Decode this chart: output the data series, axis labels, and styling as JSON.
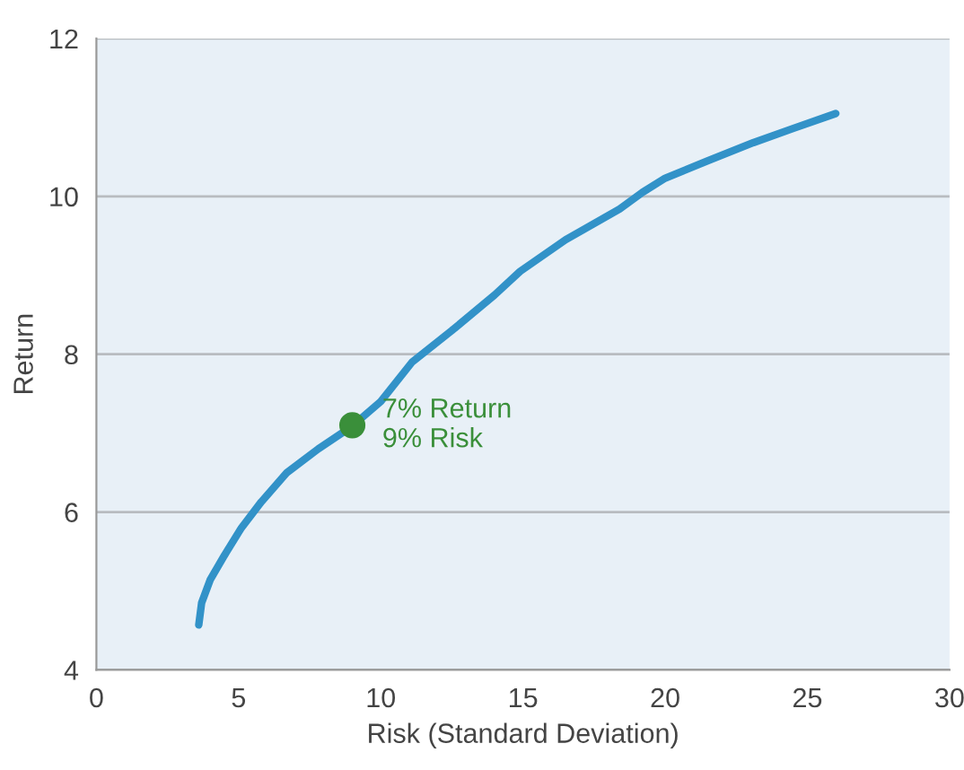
{
  "chart_data": {
    "type": "line",
    "xlabel": "Risk (Standard Deviation)",
    "ylabel": "Return",
    "series": [
      {
        "color": "#3292c8",
        "x": [
          3.6,
          3.7,
          4.0,
          4.5,
          5.1,
          5.8,
          6.7,
          7.8,
          9.0,
          10.0,
          11.1,
          12.5,
          14.0,
          14.9,
          16.5,
          18.4,
          19.2,
          20.0,
          21.5,
          23.1,
          24.5,
          26.0
        ],
        "values": [
          4.57,
          4.85,
          5.14,
          5.45,
          5.8,
          6.13,
          6.5,
          6.8,
          7.09,
          7.4,
          7.9,
          8.3,
          8.75,
          9.05,
          9.45,
          9.84,
          10.05,
          10.23,
          10.45,
          10.68,
          10.86,
          11.05
        ]
      },
      {
        "type": "scatter",
        "color": "#3a8f3a",
        "marker": "circle",
        "x": [
          9.0
        ],
        "values": [
          7.1
        ]
      }
    ],
    "annotations": [
      {
        "text": "7% Return\n9% Risk",
        "x": 9.0,
        "y": 7.1
      }
    ],
    "xlim": [
      0,
      30
    ],
    "xticks": [
      0,
      5,
      10,
      15,
      20,
      25,
      30
    ],
    "ylim": [
      4,
      12
    ],
    "yticks": [
      4,
      6,
      8,
      10,
      12
    ],
    "grid": "y",
    "legend": false
  }
}
